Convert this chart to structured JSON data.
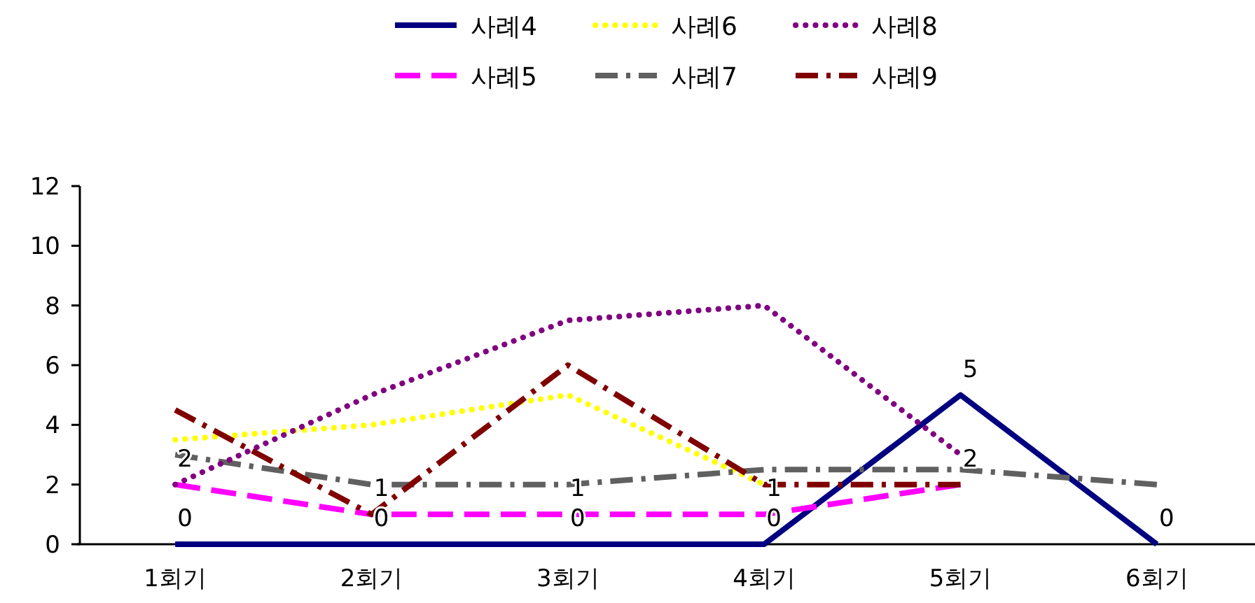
{
  "chart_data": {
    "type": "line",
    "categories": [
      "1회기",
      "2회기",
      "3회기",
      "4회기",
      "5회기",
      "6회기"
    ],
    "ylim": [
      0,
      12
    ],
    "yticks": [
      0,
      2,
      4,
      6,
      8,
      10,
      12
    ],
    "grid": false,
    "legend": "top",
    "marker": "none",
    "series": [
      {
        "name": "사례4",
        "color": "#000080",
        "line_style": "solid",
        "values": [
          0,
          0,
          0,
          0,
          5,
          0
        ],
        "value_labels": [
          "0",
          "0",
          "0",
          "0",
          "5",
          "0"
        ]
      },
      {
        "name": "사례5",
        "color": "#ff00ff",
        "line_style": "dashed",
        "values": [
          2,
          1,
          1,
          1,
          2,
          null
        ],
        "value_labels": [
          "2",
          "1",
          "1",
          "1",
          "2",
          null
        ]
      },
      {
        "name": "사례6",
        "color": "#ffff00",
        "line_style": "dotted",
        "values": [
          3.5,
          4,
          5,
          2,
          null,
          null
        ]
      },
      {
        "name": "사례7",
        "color": "#606060",
        "line_style": "dashdot",
        "values": [
          3,
          2,
          2,
          2.5,
          2.5,
          2
        ]
      },
      {
        "name": "사례8",
        "color": "#800080",
        "line_style": "dotted",
        "values": [
          2,
          5,
          7.5,
          8,
          3,
          null
        ]
      },
      {
        "name": "사례9",
        "color": "#800000",
        "line_style": "dashdot",
        "values": [
          4.5,
          1,
          6,
          2,
          2,
          null
        ]
      }
    ]
  }
}
